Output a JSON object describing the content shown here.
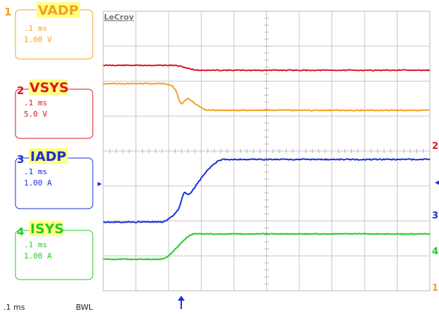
{
  "brand": "LeCroy",
  "channels": [
    {
      "num": "1",
      "name": "VADP",
      "timebase": ".1 ms",
      "scale": "1.00 V",
      "color": "#f5a020"
    },
    {
      "num": "2",
      "name": "VSYS",
      "timebase": ".1 ms",
      "scale": "5.0 V",
      "color": "#e0141c"
    },
    {
      "num": "3",
      "name": "IADP",
      "timebase": ".1 ms",
      "scale": "1.00 A",
      "color": "#1a2fd6"
    },
    {
      "num": "4",
      "name": "ISYS",
      "timebase": ".1 ms",
      "scale": "1.00 A",
      "color": "#22cc22"
    }
  ],
  "label_highlight": "#ffff80",
  "footer": {
    "timebase": ".1 ms",
    "bwl": "BWL"
  },
  "trigger_marker_color": "#1a2fd6"
}
